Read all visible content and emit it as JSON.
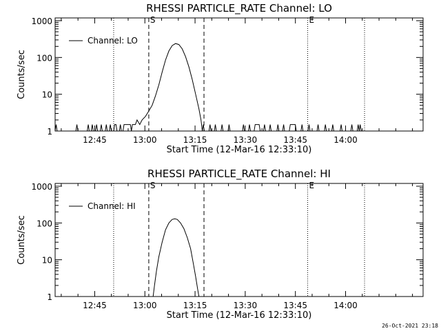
{
  "footer": {
    "timestamp": "26-Oct-2021 23:18"
  },
  "chart_data": [
    {
      "type": "line",
      "title": "RHESSI PARTICLE_RATE Channel: LO",
      "xlabel": "Start Time (12-Mar-16 12:33:10)",
      "ylabel": "Counts/sec",
      "yscale": "log",
      "ylim": [
        1,
        1000
      ],
      "xlim_minutes": [
        0,
        110
      ],
      "x_tick_labels": [
        "12:45",
        "13:00",
        "13:15",
        "13:30",
        "13:45",
        "14:00"
      ],
      "x_ticks_minutes": [
        11.83,
        26.83,
        41.83,
        56.83,
        71.83,
        86.83
      ],
      "y_tick_labels": [
        "1",
        "10",
        "100",
        "1000"
      ],
      "y_ticks": [
        1,
        10,
        100,
        1000
      ],
      "legend": {
        "position": "top-left",
        "entries": [
          "Channel: LO"
        ]
      },
      "markers": [
        {
          "label": "S",
          "minute": 28.0,
          "style": "dashed"
        },
        {
          "label": "",
          "minute": 44.5,
          "style": "dashed"
        },
        {
          "label": "",
          "minute": 17.5,
          "style": "dotted"
        },
        {
          "label": "E",
          "minute": 75.5,
          "style": "dotted"
        },
        {
          "label": "",
          "minute": 92.5,
          "style": "dotted"
        }
      ],
      "series": [
        {
          "name": "Channel: LO",
          "points": [
            [
              0,
              1
            ],
            [
              0.3,
              1.5
            ],
            [
              0.6,
              1
            ],
            [
              6.2,
              1
            ],
            [
              6.5,
              1.5
            ],
            [
              6.8,
              1
            ],
            [
              9.6,
              1
            ],
            [
              9.9,
              1.5
            ],
            [
              10.2,
              1
            ],
            [
              10.8,
              1
            ],
            [
              11.1,
              1.5
            ],
            [
              11.4,
              1
            ],
            [
              12.1,
              1
            ],
            [
              12.4,
              1.5
            ],
            [
              12.7,
              1
            ],
            [
              13.5,
              1
            ],
            [
              13.8,
              1.5
            ],
            [
              14.1,
              1
            ],
            [
              15.0,
              1
            ],
            [
              15.3,
              1.5
            ],
            [
              15.6,
              1
            ],
            [
              16.2,
              1
            ],
            [
              16.5,
              1.5
            ],
            [
              16.8,
              1
            ],
            [
              17.5,
              1
            ],
            [
              17.8,
              1.5
            ],
            [
              18.2,
              1.5
            ],
            [
              18.5,
              1
            ],
            [
              19.2,
              1
            ],
            [
              19.5,
              1.5
            ],
            [
              19.8,
              1
            ],
            [
              20.3,
              1
            ],
            [
              20.6,
              1.5
            ],
            [
              21.0,
              1.5
            ],
            [
              22.5,
              1.5
            ],
            [
              22.8,
              1
            ],
            [
              23.1,
              1.5
            ],
            [
              24.0,
              1.5
            ],
            [
              24.5,
              2
            ],
            [
              25.3,
              1.5
            ],
            [
              26.0,
              2
            ],
            [
              27.0,
              2.5
            ],
            [
              28.0,
              3.5
            ],
            [
              29.0,
              5
            ],
            [
              30.0,
              9
            ],
            [
              31.0,
              18
            ],
            [
              32.0,
              40
            ],
            [
              33.0,
              85
            ],
            [
              34.0,
              150
            ],
            [
              35.0,
              210
            ],
            [
              36.0,
              240
            ],
            [
              37.0,
              225
            ],
            [
              38.0,
              170
            ],
            [
              39.0,
              105
            ],
            [
              40.0,
              55
            ],
            [
              41.0,
              25
            ],
            [
              42.0,
              10
            ],
            [
              43.0,
              4
            ],
            [
              43.6,
              2
            ],
            [
              44.0,
              1
            ],
            [
              44.3,
              1.5
            ],
            [
              44.6,
              1
            ],
            [
              46.0,
              1
            ],
            [
              46.3,
              1.5
            ],
            [
              46.6,
              1
            ],
            [
              47.6,
              1
            ],
            [
              47.9,
              1.5
            ],
            [
              48.2,
              1
            ],
            [
              49.6,
              1
            ],
            [
              49.9,
              1.5
            ],
            [
              50.2,
              1
            ],
            [
              51.7,
              1
            ],
            [
              52.0,
              1.5
            ],
            [
              52.3,
              1
            ],
            [
              56.0,
              1
            ],
            [
              56.3,
              1.5
            ],
            [
              56.6,
              1
            ],
            [
              57.8,
              1
            ],
            [
              58.1,
              1.5
            ],
            [
              58.4,
              1
            ],
            [
              59.5,
              1
            ],
            [
              59.8,
              1.5
            ],
            [
              61.0,
              1.5
            ],
            [
              61.3,
              1
            ],
            [
              62.3,
              1
            ],
            [
              62.6,
              1.5
            ],
            [
              62.9,
              1
            ],
            [
              64.0,
              1
            ],
            [
              64.3,
              1.5
            ],
            [
              64.6,
              1
            ],
            [
              66.3,
              1
            ],
            [
              66.6,
              1.5
            ],
            [
              66.9,
              1
            ],
            [
              68.0,
              1
            ],
            [
              68.3,
              1.5
            ],
            [
              68.6,
              1
            ],
            [
              70.0,
              1
            ],
            [
              70.3,
              1.5
            ],
            [
              71.8,
              1.5
            ],
            [
              72.1,
              1
            ],
            [
              73.5,
              1
            ],
            [
              73.8,
              1.5
            ],
            [
              74.1,
              1
            ],
            [
              75.6,
              1
            ],
            [
              75.9,
              1.5
            ],
            [
              76.2,
              1
            ],
            [
              78.3,
              1
            ],
            [
              78.6,
              1.5
            ],
            [
              78.9,
              1
            ],
            [
              80.5,
              1
            ],
            [
              80.8,
              1.5
            ],
            [
              81.1,
              1
            ],
            [
              82.7,
              1
            ],
            [
              83.0,
              1.5
            ],
            [
              83.3,
              1
            ],
            [
              85.2,
              1
            ],
            [
              85.5,
              1.5
            ],
            [
              85.8,
              1
            ],
            [
              88.4,
              1
            ],
            [
              88.7,
              1.5
            ],
            [
              89.0,
              1
            ],
            [
              90.3,
              1
            ],
            [
              90.6,
              1.5
            ],
            [
              90.9,
              1
            ],
            [
              91.2,
              1.5
            ],
            [
              91.5,
              1
            ]
          ]
        }
      ]
    },
    {
      "type": "line",
      "title": "RHESSI PARTICLE_RATE Channel: HI",
      "xlabel": "Start Time (12-Mar-16 12:33:10)",
      "ylabel": "Counts/sec",
      "yscale": "log",
      "ylim": [
        1,
        1000
      ],
      "xlim_minutes": [
        0,
        110
      ],
      "x_tick_labels": [
        "12:45",
        "13:00",
        "13:15",
        "13:30",
        "13:45",
        "14:00"
      ],
      "x_ticks_minutes": [
        11.83,
        26.83,
        41.83,
        56.83,
        71.83,
        86.83
      ],
      "y_tick_labels": [
        "1",
        "10",
        "100",
        "1000"
      ],
      "y_ticks": [
        1,
        10,
        100,
        1000
      ],
      "legend": {
        "position": "top-left",
        "entries": [
          "Channel: HI"
        ]
      },
      "markers": [
        {
          "label": "S",
          "minute": 28.0,
          "style": "dashed"
        },
        {
          "label": "",
          "minute": 44.5,
          "style": "dashed"
        },
        {
          "label": "",
          "minute": 17.5,
          "style": "dotted"
        },
        {
          "label": "E",
          "minute": 75.5,
          "style": "dotted"
        },
        {
          "label": "",
          "minute": 92.5,
          "style": "dotted"
        }
      ],
      "series": [
        {
          "name": "Channel: HI",
          "points": [
            [
              29.3,
              1
            ],
            [
              29.7,
              2
            ],
            [
              30.3,
              5
            ],
            [
              31.0,
              12
            ],
            [
              32.0,
              30
            ],
            [
              33.0,
              65
            ],
            [
              34.0,
              100
            ],
            [
              35.0,
              125
            ],
            [
              35.8,
              130
            ],
            [
              36.5,
              125
            ],
            [
              37.5,
              100
            ],
            [
              38.5,
              70
            ],
            [
              39.5,
              40
            ],
            [
              40.5,
              20
            ],
            [
              41.3,
              8
            ],
            [
              42.0,
              3.5
            ],
            [
              42.6,
              1.6
            ],
            [
              43.0,
              1
            ]
          ]
        }
      ]
    }
  ]
}
